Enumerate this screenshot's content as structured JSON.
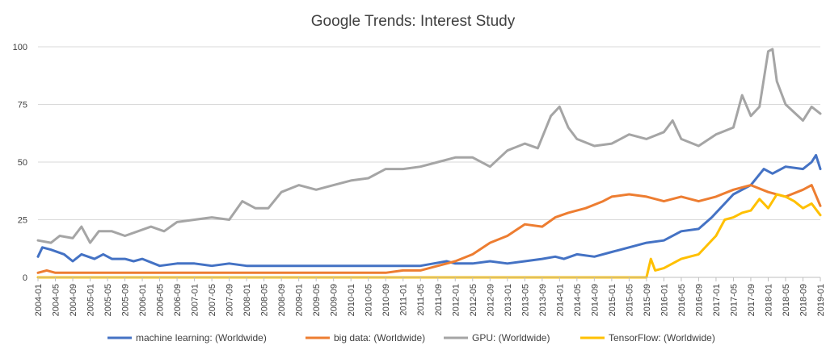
{
  "chart_data": {
    "type": "line",
    "title": "Google Trends: Interest Study",
    "xlabel": "",
    "ylabel": "",
    "ylim": [
      0,
      100
    ],
    "yticks": [
      0,
      25,
      50,
      75,
      100
    ],
    "grid": true,
    "legend_position": "bottom",
    "x_tick_labels": [
      "2004-01",
      "2004-05",
      "2004-09",
      "2005-01",
      "2005-05",
      "2005-09",
      "2006-01",
      "2006-05",
      "2006-09",
      "2007-01",
      "2007-05",
      "2007-09",
      "2008-01",
      "2008-05",
      "2008-09",
      "2009-01",
      "2009-05",
      "2009-09",
      "2010-01",
      "2010-05",
      "2010-09",
      "2011-01",
      "2011-05",
      "2011-09",
      "2012-01",
      "2012-05",
      "2012-09",
      "2013-01",
      "2013-05",
      "2013-09",
      "2014-01",
      "2014-05",
      "2014-09",
      "2015-01",
      "2015-05",
      "2015-09",
      "2016-01",
      "2016-05",
      "2016-09",
      "2017-01",
      "2017-05",
      "2017-09",
      "2018-01",
      "2018-05",
      "2018-09",
      "2019-01"
    ],
    "x_start": "2004-01",
    "x_end": "2019-01",
    "series": [
      {
        "name": "machine learning: (Worldwide)",
        "color": "#4472c4",
        "points": [
          [
            "2004-01",
            9
          ],
          [
            "2004-02",
            13
          ],
          [
            "2004-04",
            12
          ],
          [
            "2004-07",
            10
          ],
          [
            "2004-09",
            7
          ],
          [
            "2004-11",
            10
          ],
          [
            "2005-02",
            8
          ],
          [
            "2005-04",
            10
          ],
          [
            "2005-06",
            8
          ],
          [
            "2005-09",
            8
          ],
          [
            "2005-11",
            7
          ],
          [
            "2006-01",
            8
          ],
          [
            "2006-05",
            5
          ],
          [
            "2006-09",
            6
          ],
          [
            "2007-01",
            6
          ],
          [
            "2007-05",
            5
          ],
          [
            "2007-09",
            6
          ],
          [
            "2008-01",
            5
          ],
          [
            "2008-05",
            5
          ],
          [
            "2008-09",
            5
          ],
          [
            "2009-01",
            5
          ],
          [
            "2009-05",
            5
          ],
          [
            "2009-09",
            5
          ],
          [
            "2010-01",
            5
          ],
          [
            "2010-05",
            5
          ],
          [
            "2010-09",
            5
          ],
          [
            "2011-01",
            5
          ],
          [
            "2011-05",
            5
          ],
          [
            "2011-08",
            6
          ],
          [
            "2011-11",
            7
          ],
          [
            "2012-01",
            6
          ],
          [
            "2012-05",
            6
          ],
          [
            "2012-09",
            7
          ],
          [
            "2013-01",
            6
          ],
          [
            "2013-05",
            7
          ],
          [
            "2013-09",
            8
          ],
          [
            "2013-12",
            9
          ],
          [
            "2014-02",
            8
          ],
          [
            "2014-05",
            10
          ],
          [
            "2014-09",
            9
          ],
          [
            "2015-01",
            11
          ],
          [
            "2015-05",
            13
          ],
          [
            "2015-09",
            15
          ],
          [
            "2016-01",
            16
          ],
          [
            "2016-05",
            20
          ],
          [
            "2016-09",
            21
          ],
          [
            "2016-12",
            26
          ],
          [
            "2017-02",
            30
          ],
          [
            "2017-05",
            36
          ],
          [
            "2017-07",
            38
          ],
          [
            "2017-09",
            40
          ],
          [
            "2017-12",
            47
          ],
          [
            "2018-02",
            45
          ],
          [
            "2018-05",
            48
          ],
          [
            "2018-09",
            47
          ],
          [
            "2018-11",
            50
          ],
          [
            "2018-12",
            53
          ],
          [
            "2019-01",
            47
          ]
        ]
      },
      {
        "name": "big data: (Worldwide)",
        "color": "#ed7d31",
        "points": [
          [
            "2004-01",
            2
          ],
          [
            "2004-03",
            3
          ],
          [
            "2004-05",
            2
          ],
          [
            "2004-09",
            2
          ],
          [
            "2005-01",
            2
          ],
          [
            "2005-05",
            2
          ],
          [
            "2005-09",
            2
          ],
          [
            "2006-01",
            2
          ],
          [
            "2006-05",
            2
          ],
          [
            "2006-09",
            2
          ],
          [
            "2007-01",
            2
          ],
          [
            "2007-05",
            2
          ],
          [
            "2007-09",
            2
          ],
          [
            "2008-01",
            2
          ],
          [
            "2008-05",
            2
          ],
          [
            "2008-09",
            2
          ],
          [
            "2009-01",
            2
          ],
          [
            "2009-05",
            2
          ],
          [
            "2009-09",
            2
          ],
          [
            "2010-01",
            2
          ],
          [
            "2010-05",
            2
          ],
          [
            "2010-09",
            2
          ],
          [
            "2011-01",
            3
          ],
          [
            "2011-05",
            3
          ],
          [
            "2011-09",
            5
          ],
          [
            "2012-01",
            7
          ],
          [
            "2012-05",
            10
          ],
          [
            "2012-09",
            15
          ],
          [
            "2013-01",
            18
          ],
          [
            "2013-05",
            23
          ],
          [
            "2013-09",
            22
          ],
          [
            "2013-12",
            26
          ],
          [
            "2014-03",
            28
          ],
          [
            "2014-07",
            30
          ],
          [
            "2014-11",
            33
          ],
          [
            "2015-01",
            35
          ],
          [
            "2015-05",
            36
          ],
          [
            "2015-09",
            35
          ],
          [
            "2016-01",
            33
          ],
          [
            "2016-05",
            35
          ],
          [
            "2016-09",
            33
          ],
          [
            "2017-01",
            35
          ],
          [
            "2017-05",
            38
          ],
          [
            "2017-09",
            40
          ],
          [
            "2018-01",
            37
          ],
          [
            "2018-05",
            35
          ],
          [
            "2018-09",
            38
          ],
          [
            "2018-11",
            40
          ],
          [
            "2019-01",
            31
          ]
        ]
      },
      {
        "name": "GPU: (Worldwide)",
        "color": "#a5a5a5",
        "points": [
          [
            "2004-01",
            16
          ],
          [
            "2004-04",
            15
          ],
          [
            "2004-06",
            18
          ],
          [
            "2004-09",
            17
          ],
          [
            "2004-11",
            22
          ],
          [
            "2005-01",
            15
          ],
          [
            "2005-03",
            20
          ],
          [
            "2005-06",
            20
          ],
          [
            "2005-09",
            18
          ],
          [
            "2005-12",
            20
          ],
          [
            "2006-03",
            22
          ],
          [
            "2006-06",
            20
          ],
          [
            "2006-09",
            24
          ],
          [
            "2007-01",
            25
          ],
          [
            "2007-05",
            26
          ],
          [
            "2007-09",
            25
          ],
          [
            "2007-12",
            33
          ],
          [
            "2008-03",
            30
          ],
          [
            "2008-06",
            30
          ],
          [
            "2008-09",
            37
          ],
          [
            "2009-01",
            40
          ],
          [
            "2009-05",
            38
          ],
          [
            "2009-09",
            40
          ],
          [
            "2010-01",
            42
          ],
          [
            "2010-05",
            43
          ],
          [
            "2010-09",
            47
          ],
          [
            "2011-01",
            47
          ],
          [
            "2011-05",
            48
          ],
          [
            "2011-09",
            50
          ],
          [
            "2012-01",
            52
          ],
          [
            "2012-05",
            52
          ],
          [
            "2012-09",
            48
          ],
          [
            "2013-01",
            55
          ],
          [
            "2013-05",
            58
          ],
          [
            "2013-08",
            56
          ],
          [
            "2013-11",
            70
          ],
          [
            "2014-01",
            74
          ],
          [
            "2014-03",
            65
          ],
          [
            "2014-05",
            60
          ],
          [
            "2014-09",
            57
          ],
          [
            "2015-01",
            58
          ],
          [
            "2015-05",
            62
          ],
          [
            "2015-09",
            60
          ],
          [
            "2016-01",
            63
          ],
          [
            "2016-03",
            68
          ],
          [
            "2016-05",
            60
          ],
          [
            "2016-09",
            57
          ],
          [
            "2017-01",
            62
          ],
          [
            "2017-05",
            65
          ],
          [
            "2017-07",
            79
          ],
          [
            "2017-09",
            70
          ],
          [
            "2017-11",
            74
          ],
          [
            "2018-01",
            98
          ],
          [
            "2018-02",
            99
          ],
          [
            "2018-03",
            85
          ],
          [
            "2018-05",
            75
          ],
          [
            "2018-09",
            68
          ],
          [
            "2018-11",
            74
          ],
          [
            "2019-01",
            71
          ]
        ]
      },
      {
        "name": "TensorFlow: (Worldwide)",
        "color": "#ffc000",
        "points": [
          [
            "2004-01",
            0
          ],
          [
            "2015-09",
            0
          ],
          [
            "2015-10",
            8
          ],
          [
            "2015-11",
            3
          ],
          [
            "2016-01",
            4
          ],
          [
            "2016-05",
            8
          ],
          [
            "2016-09",
            10
          ],
          [
            "2017-01",
            18
          ],
          [
            "2017-03",
            25
          ],
          [
            "2017-05",
            26
          ],
          [
            "2017-07",
            28
          ],
          [
            "2017-09",
            29
          ],
          [
            "2017-11",
            34
          ],
          [
            "2018-01",
            30
          ],
          [
            "2018-03",
            36
          ],
          [
            "2018-05",
            35
          ],
          [
            "2018-07",
            33
          ],
          [
            "2018-09",
            30
          ],
          [
            "2018-11",
            32
          ],
          [
            "2019-01",
            27
          ]
        ]
      }
    ]
  }
}
